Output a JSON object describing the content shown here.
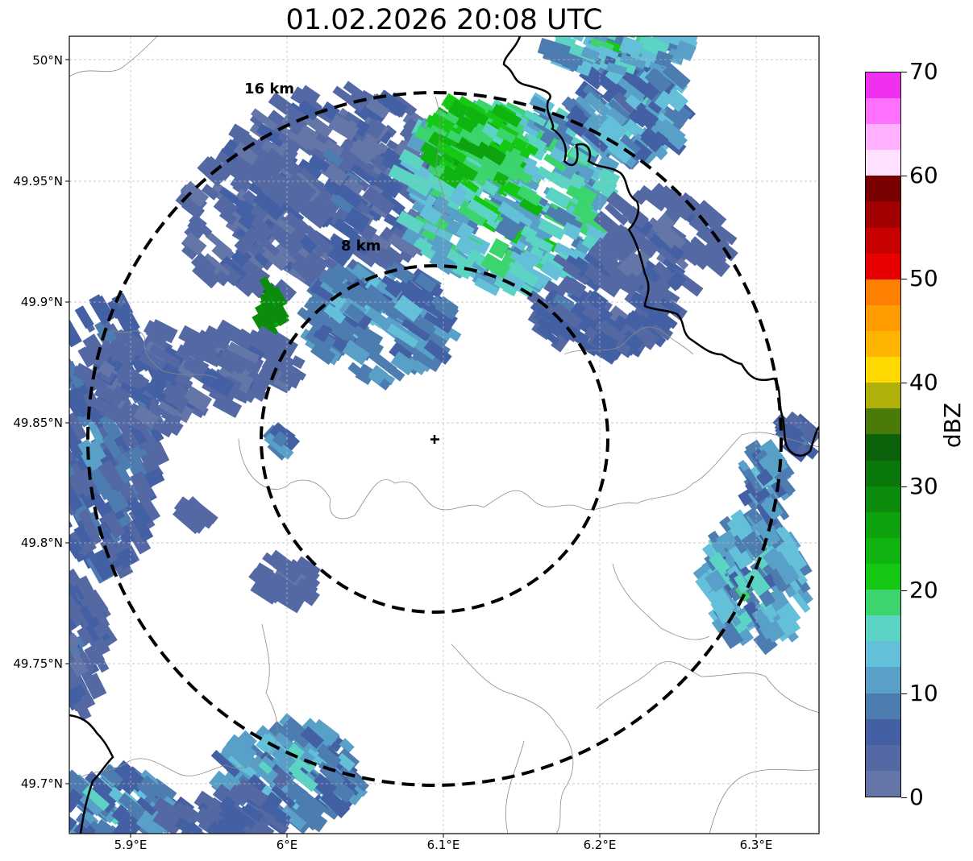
{
  "title": "01.02.2026 20:08 UTC",
  "y_axis_labels": [
    "50°N",
    "49.95°N",
    "49.9°N",
    "49.85°N",
    "49.8°N",
    "49.75°N",
    "49.7°N"
  ],
  "x_axis_labels": [
    "5.9°E",
    "6°E",
    "6.1°E",
    "6.2°E",
    "6.3°E"
  ],
  "rings": [
    {
      "label": "8 km",
      "radius_km": 8
    },
    {
      "label": "16 km",
      "radius_km": 16
    }
  ],
  "radar_site": {
    "lon": 6.093,
    "lat": 49.843
  },
  "colorbar": {
    "title": "dBZ",
    "tick_labels": [
      "0",
      "10",
      "20",
      "30",
      "40",
      "50",
      "60",
      "70"
    ],
    "min": 0,
    "max": 70,
    "colors": [
      "#6476a8",
      "#5468a4",
      "#4460a4",
      "#4c7cb0",
      "#58a0c8",
      "#64c0d8",
      "#5cd4c4",
      "#3cd46c",
      "#14c814",
      "#10b410",
      "#0ea20e",
      "#0c8c0c",
      "#0a780a",
      "#0a620a",
      "#4a7a08",
      "#b0b00a",
      "#ffd800",
      "#ffb400",
      "#ff9c00",
      "#ff8000",
      "#e80000",
      "#c80000",
      "#a00000",
      "#780000",
      "#ffe0ff",
      "#ffb0ff",
      "#ff70ff",
      "#f030f0"
    ]
  }
}
